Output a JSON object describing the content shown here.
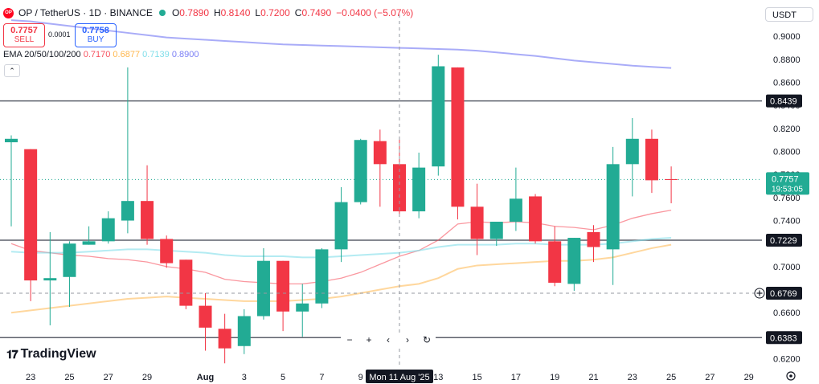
{
  "header": {
    "symbol": "OP / TetherUS · 1D · BINANCE",
    "symbol_icon": "op-logo-icon",
    "open_label": "O",
    "open": "0.7890",
    "high_label": "H",
    "high": "0.8140",
    "low_label": "L",
    "low": "0.7200",
    "close_label": "C",
    "close": "0.7490",
    "change": "−0.0400 (−5.07%)"
  },
  "trade": {
    "sell_price": "0.7757",
    "sell_label": "SELL",
    "spread": "0.0001",
    "buy_price": "0.7758",
    "buy_label": "BUY"
  },
  "ema_legend": {
    "label": "EMA 20/50/100/200",
    "v20": "0.7170",
    "v50": "0.6877",
    "v100": "0.7139",
    "v200": "0.8900"
  },
  "currency": "USDT",
  "branding": "TradingView",
  "toolbar": {
    "zoom_out": "−",
    "zoom_in": "+",
    "left": "‹",
    "right": "›",
    "reset": "↻"
  },
  "colors": {
    "up": "#22ab94",
    "down": "#f23645",
    "ema20": "#f7525f",
    "ema50": "#ffb74d",
    "ema100": "#80deea",
    "ema200": "#7b7ff5",
    "price_tag": "#22ab94",
    "level_tag": "#131722"
  },
  "chart_data": {
    "type": "candlestick",
    "y_axis": {
      "ticks": [
        "0.6200",
        "0.6400",
        "0.6600",
        "0.6800",
        "0.7000",
        "0.7200",
        "0.7400",
        "0.7600",
        "0.7800",
        "0.8000",
        "0.8200",
        "0.8400",
        "0.8600",
        "0.8800",
        "0.9000"
      ],
      "ylim": [
        0.612,
        0.919
      ]
    },
    "x_axis": {
      "ticks": [
        "23",
        "25",
        "27",
        "29",
        "Aug",
        "3",
        "5",
        "7",
        "9",
        "13",
        "15",
        "17",
        "19",
        "21",
        "23",
        "25",
        "27",
        "29"
      ],
      "crosshair_label": "Mon 11 Aug '25"
    },
    "candles": [
      {
        "o": 0.808,
        "h": 0.814,
        "l": 0.735,
        "c": 0.811
      },
      {
        "o": 0.802,
        "h": 0.802,
        "l": 0.67,
        "c": 0.688
      },
      {
        "o": 0.688,
        "h": 0.73,
        "l": 0.649,
        "c": 0.69
      },
      {
        "o": 0.691,
        "h": 0.722,
        "l": 0.665,
        "c": 0.72
      },
      {
        "o": 0.719,
        "h": 0.735,
        "l": 0.719,
        "c": 0.722
      },
      {
        "o": 0.722,
        "h": 0.748,
        "l": 0.72,
        "c": 0.742
      },
      {
        "o": 0.74,
        "h": 0.873,
        "l": 0.729,
        "c": 0.757
      },
      {
        "o": 0.757,
        "h": 0.788,
        "l": 0.719,
        "c": 0.724
      },
      {
        "o": 0.724,
        "h": 0.727,
        "l": 0.699,
        "c": 0.703
      },
      {
        "o": 0.706,
        "h": 0.706,
        "l": 0.663,
        "c": 0.666
      },
      {
        "o": 0.666,
        "h": 0.677,
        "l": 0.627,
        "c": 0.647
      },
      {
        "o": 0.646,
        "h": 0.659,
        "l": 0.616,
        "c": 0.629
      },
      {
        "o": 0.631,
        "h": 0.663,
        "l": 0.624,
        "c": 0.657
      },
      {
        "o": 0.657,
        "h": 0.716,
        "l": 0.654,
        "c": 0.705
      },
      {
        "o": 0.705,
        "h": 0.705,
        "l": 0.644,
        "c": 0.661
      },
      {
        "o": 0.661,
        "h": 0.685,
        "l": 0.639,
        "c": 0.668
      },
      {
        "o": 0.668,
        "h": 0.716,
        "l": 0.664,
        "c": 0.715
      },
      {
        "o": 0.715,
        "h": 0.769,
        "l": 0.704,
        "c": 0.756
      },
      {
        "o": 0.756,
        "h": 0.811,
        "l": 0.754,
        "c": 0.81
      },
      {
        "o": 0.809,
        "h": 0.819,
        "l": 0.752,
        "c": 0.789
      },
      {
        "o": 0.789,
        "h": 0.813,
        "l": 0.746,
        "c": 0.748
      },
      {
        "o": 0.748,
        "h": 0.799,
        "l": 0.742,
        "c": 0.786
      },
      {
        "o": 0.787,
        "h": 0.884,
        "l": 0.779,
        "c": 0.874
      },
      {
        "o": 0.873,
        "h": 0.873,
        "l": 0.741,
        "c": 0.752
      },
      {
        "o": 0.752,
        "h": 0.772,
        "l": 0.71,
        "c": 0.724
      },
      {
        "o": 0.724,
        "h": 0.738,
        "l": 0.718,
        "c": 0.739
      },
      {
        "o": 0.739,
        "h": 0.786,
        "l": 0.731,
        "c": 0.759
      },
      {
        "o": 0.761,
        "h": 0.763,
        "l": 0.72,
        "c": 0.722
      },
      {
        "o": 0.722,
        "h": 0.735,
        "l": 0.683,
        "c": 0.686
      },
      {
        "o": 0.685,
        "h": 0.725,
        "l": 0.679,
        "c": 0.725
      },
      {
        "o": 0.73,
        "h": 0.736,
        "l": 0.704,
        "c": 0.717
      },
      {
        "o": 0.715,
        "h": 0.804,
        "l": 0.684,
        "c": 0.789
      },
      {
        "o": 0.789,
        "h": 0.829,
        "l": 0.761,
        "c": 0.811
      },
      {
        "o": 0.811,
        "h": 0.819,
        "l": 0.764,
        "c": 0.775
      },
      {
        "o": 0.776,
        "h": 0.787,
        "l": 0.755,
        "c": 0.7757
      }
    ],
    "ema": {
      "ema20": [
        0.72,
        0.714,
        0.712,
        0.71,
        0.709,
        0.707,
        0.706,
        0.704,
        0.7,
        0.698,
        0.695,
        0.689,
        0.687,
        0.686,
        0.685,
        0.685,
        0.687,
        0.69,
        0.695,
        0.702,
        0.709,
        0.714,
        0.723,
        0.737,
        0.739,
        0.738,
        0.739,
        0.738,
        0.735,
        0.734,
        0.732,
        0.736,
        0.742,
        0.746,
        0.749
      ],
      "ema50": [
        0.66,
        0.662,
        0.664,
        0.666,
        0.668,
        0.67,
        0.672,
        0.673,
        0.674,
        0.673,
        0.672,
        0.671,
        0.67,
        0.67,
        0.67,
        0.671,
        0.672,
        0.674,
        0.677,
        0.68,
        0.683,
        0.685,
        0.69,
        0.698,
        0.701,
        0.702,
        0.703,
        0.704,
        0.705,
        0.705,
        0.706,
        0.708,
        0.712,
        0.716,
        0.719
      ],
      "ema100": [
        0.713,
        0.712,
        0.712,
        0.712,
        0.713,
        0.714,
        0.715,
        0.715,
        0.714,
        0.713,
        0.712,
        0.71,
        0.709,
        0.709,
        0.709,
        0.708,
        0.708,
        0.709,
        0.71,
        0.711,
        0.712,
        0.714,
        0.717,
        0.719,
        0.719,
        0.719,
        0.72,
        0.72,
        0.719,
        0.719,
        0.719,
        0.72,
        0.722,
        0.724,
        0.725
      ],
      "ema200": [
        0.914,
        0.913,
        0.911,
        0.909,
        0.907,
        0.905,
        0.903,
        0.901,
        0.899,
        0.898,
        0.897,
        0.896,
        0.895,
        0.894,
        0.893,
        0.8925,
        0.892,
        0.8915,
        0.891,
        0.8905,
        0.89,
        0.8895,
        0.889,
        0.8885,
        0.8875,
        0.886,
        0.8845,
        0.883,
        0.881,
        0.879,
        0.8775,
        0.876,
        0.8745,
        0.8735,
        0.8725
      ]
    },
    "levels": [
      {
        "value": 0.8439,
        "label": "0.8439"
      },
      {
        "value": 0.7229,
        "label": "0.7229"
      },
      {
        "value": 0.6383,
        "label": "0.6383"
      }
    ],
    "crosshair": {
      "value": 0.6769,
      "label": "0.6769"
    },
    "current_price": {
      "value": 0.7757,
      "label": "0.7757",
      "countdown": "19:53:05"
    },
    "grid": false,
    "legend": "top-left"
  }
}
